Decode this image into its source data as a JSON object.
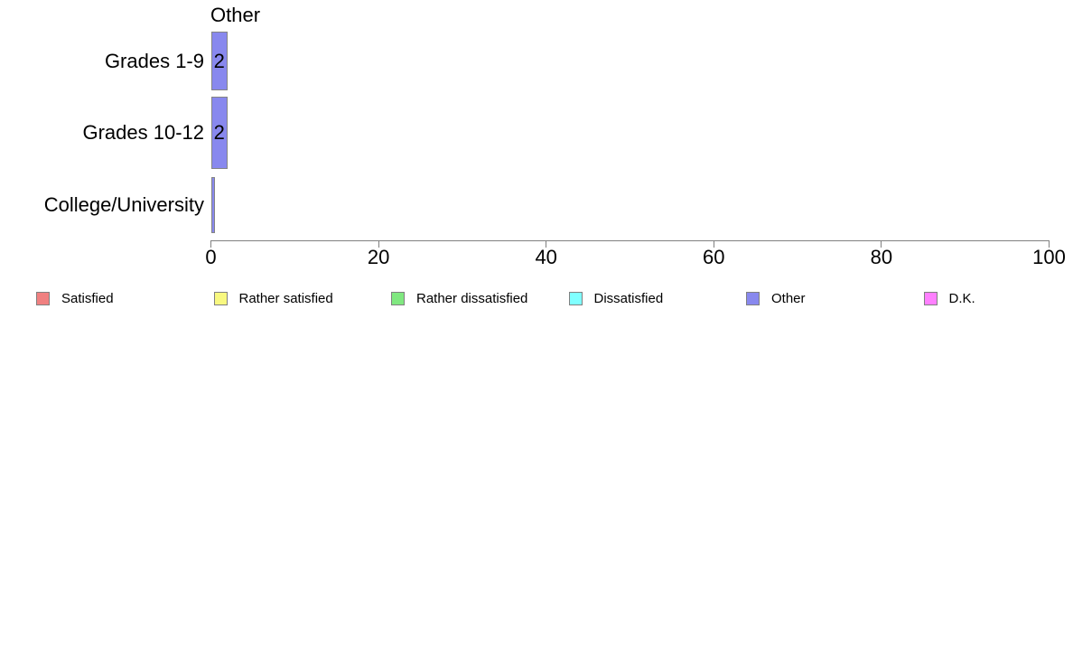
{
  "chart_data": {
    "type": "bar",
    "orientation": "horizontal",
    "title": "Other",
    "categories": [
      "Grades 1-9",
      "Grades 10-12",
      "College/University"
    ],
    "values": [
      2,
      2,
      0.5
    ],
    "bar_labels": [
      "2",
      "2",
      ""
    ],
    "xlabel": "",
    "ylabel": "",
    "xlim": [
      0,
      100
    ],
    "x_ticks": [
      0,
      20,
      40,
      60,
      80,
      100
    ],
    "x_tick_labels": [
      "0",
      "20",
      "40",
      "60",
      "80",
      "100"
    ],
    "grid": false,
    "bar_color": "#8888ee",
    "bar_border_color": "#848484",
    "axis_color": "#808080",
    "text_color": "#000000",
    "legend_position": "bottom",
    "legend": [
      {
        "label": "Satisfied",
        "color": "#f08080"
      },
      {
        "label": "Rather satisfied",
        "color": "#f8f880"
      },
      {
        "label": "Rather dissatisfied",
        "color": "#80e880"
      },
      {
        "label": "Dissatisfied",
        "color": "#80ffff"
      },
      {
        "label": "Other",
        "color": "#8888ee"
      },
      {
        "label": "D.K.",
        "color": "#ff80ff"
      }
    ]
  }
}
